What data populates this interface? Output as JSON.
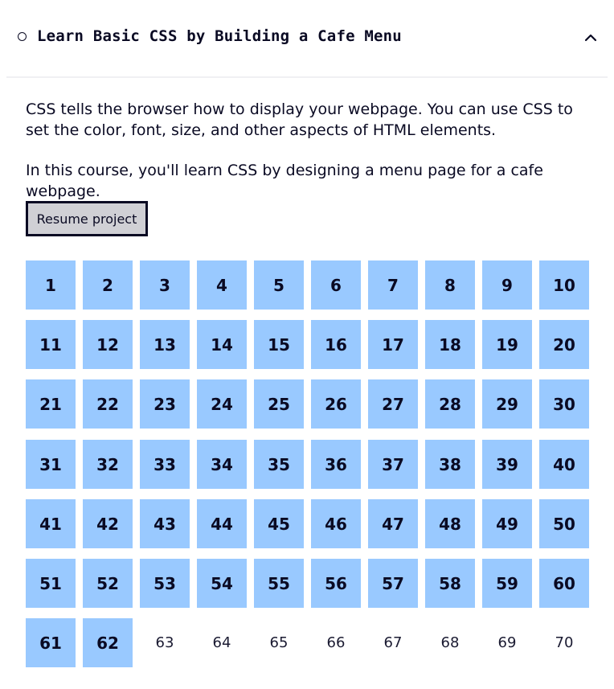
{
  "course": {
    "title": "Learn Basic CSS by Building a Cafe Menu",
    "status_icon": "circle-outline-icon",
    "toggle_icon": "caret-up-icon",
    "description_1": "CSS tells the browser how to display your webpage. You can use CSS to set the color, font, size, and other aspects of HTML elements.",
    "description_2": "In this course, you'll learn CSS by designing a menu page for a cafe webpage.",
    "resume_label": "Resume project"
  },
  "steps": {
    "completed_color": "#99c9ff",
    "items": [
      {
        "label": "1",
        "completed": true
      },
      {
        "label": "2",
        "completed": true
      },
      {
        "label": "3",
        "completed": true
      },
      {
        "label": "4",
        "completed": true
      },
      {
        "label": "5",
        "completed": true
      },
      {
        "label": "6",
        "completed": true
      },
      {
        "label": "7",
        "completed": true
      },
      {
        "label": "8",
        "completed": true
      },
      {
        "label": "9",
        "completed": true
      },
      {
        "label": "10",
        "completed": true
      },
      {
        "label": "11",
        "completed": true
      },
      {
        "label": "12",
        "completed": true
      },
      {
        "label": "13",
        "completed": true
      },
      {
        "label": "14",
        "completed": true
      },
      {
        "label": "15",
        "completed": true
      },
      {
        "label": "16",
        "completed": true
      },
      {
        "label": "17",
        "completed": true
      },
      {
        "label": "18",
        "completed": true
      },
      {
        "label": "19",
        "completed": true
      },
      {
        "label": "20",
        "completed": true
      },
      {
        "label": "21",
        "completed": true
      },
      {
        "label": "22",
        "completed": true
      },
      {
        "label": "23",
        "completed": true
      },
      {
        "label": "24",
        "completed": true
      },
      {
        "label": "25",
        "completed": true
      },
      {
        "label": "26",
        "completed": true
      },
      {
        "label": "27",
        "completed": true
      },
      {
        "label": "28",
        "completed": true
      },
      {
        "label": "29",
        "completed": true
      },
      {
        "label": "30",
        "completed": true
      },
      {
        "label": "31",
        "completed": true
      },
      {
        "label": "32",
        "completed": true
      },
      {
        "label": "33",
        "completed": true
      },
      {
        "label": "34",
        "completed": true
      },
      {
        "label": "35",
        "completed": true
      },
      {
        "label": "36",
        "completed": true
      },
      {
        "label": "37",
        "completed": true
      },
      {
        "label": "38",
        "completed": true
      },
      {
        "label": "39",
        "completed": true
      },
      {
        "label": "40",
        "completed": true
      },
      {
        "label": "41",
        "completed": true
      },
      {
        "label": "42",
        "completed": true
      },
      {
        "label": "43",
        "completed": true
      },
      {
        "label": "44",
        "completed": true
      },
      {
        "label": "45",
        "completed": true
      },
      {
        "label": "46",
        "completed": true
      },
      {
        "label": "47",
        "completed": true
      },
      {
        "label": "48",
        "completed": true
      },
      {
        "label": "49",
        "completed": true
      },
      {
        "label": "50",
        "completed": true
      },
      {
        "label": "51",
        "completed": true
      },
      {
        "label": "52",
        "completed": true
      },
      {
        "label": "53",
        "completed": true
      },
      {
        "label": "54",
        "completed": true
      },
      {
        "label": "55",
        "completed": true
      },
      {
        "label": "56",
        "completed": true
      },
      {
        "label": "57",
        "completed": true
      },
      {
        "label": "58",
        "completed": true
      },
      {
        "label": "59",
        "completed": true
      },
      {
        "label": "60",
        "completed": true
      },
      {
        "label": "61",
        "completed": true
      },
      {
        "label": "62",
        "completed": true
      },
      {
        "label": "63",
        "completed": false
      },
      {
        "label": "64",
        "completed": false
      },
      {
        "label": "65",
        "completed": false
      },
      {
        "label": "66",
        "completed": false
      },
      {
        "label": "67",
        "completed": false
      },
      {
        "label": "68",
        "completed": false
      },
      {
        "label": "69",
        "completed": false
      },
      {
        "label": "70",
        "completed": false
      }
    ]
  }
}
